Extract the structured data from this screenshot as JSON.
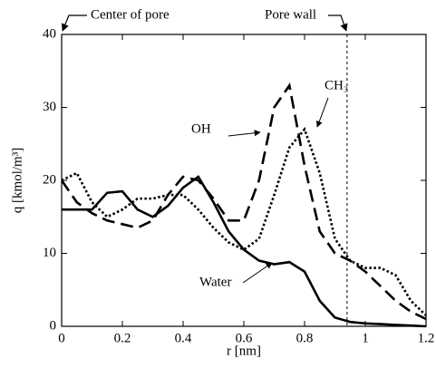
{
  "chart_data": {
    "type": "line",
    "xlabel": "r [nm]",
    "ylabel": "q [kmol/m³]",
    "annotations": [
      "Center of pore",
      "Pore wall"
    ],
    "pore_wall_x": 0.94,
    "x": [
      0,
      0.05,
      0.1,
      0.15,
      0.2,
      0.25,
      0.3,
      0.35,
      0.4,
      0.45,
      0.5,
      0.55,
      0.6,
      0.65,
      0.7,
      0.75,
      0.8,
      0.85,
      0.9,
      0.95,
      1,
      1.05,
      1.1,
      1.15,
      1.2
    ],
    "series": [
      {
        "name": "Water",
        "color": "#000000",
        "linestyle": "solid",
        "values": [
          16,
          16,
          16,
          18.3,
          18.5,
          16,
          15,
          16.5,
          19,
          20.5,
          17,
          13,
          10.5,
          9,
          8.5,
          8.8,
          7.5,
          3.5,
          1.2,
          0.6,
          0.4,
          0.3,
          0.2,
          0.1,
          0
        ]
      },
      {
        "name": "OH",
        "color": "#000000",
        "linestyle": "dashed",
        "values": [
          20,
          17,
          15.5,
          14.5,
          14,
          13.5,
          14.5,
          18,
          20.5,
          20,
          17.5,
          14.5,
          14.5,
          20,
          30,
          33,
          22,
          13,
          10,
          9,
          7.5,
          5.5,
          3.5,
          2,
          1
        ]
      },
      {
        "name": "CH₃",
        "color": "#000000",
        "linestyle": "dotted",
        "values": [
          20,
          21,
          17,
          15,
          16,
          17.5,
          17.5,
          18,
          18,
          16,
          13.5,
          11.5,
          10.5,
          12,
          18,
          24.5,
          27,
          21,
          12,
          9,
          8,
          8,
          7,
          3.5,
          1.5
        ]
      }
    ],
    "xlim": [
      0,
      1.2
    ],
    "xticks": [
      0,
      0.2,
      0.4,
      0.6,
      0.8,
      1,
      1.2
    ],
    "ylim": [
      0,
      40
    ],
    "yticks": [
      0,
      10,
      20,
      30,
      40
    ]
  }
}
